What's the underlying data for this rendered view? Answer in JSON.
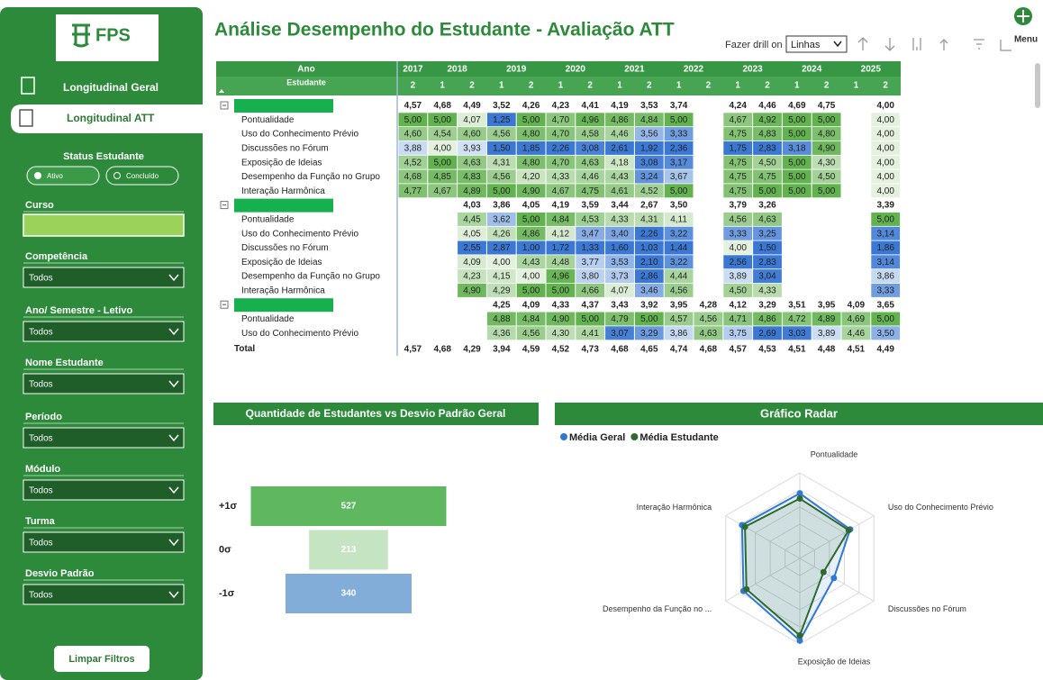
{
  "sidebar": {
    "logo": "FPS",
    "nav": [
      "Longitudinal Geral",
      "Longitudinal ATT"
    ],
    "status": {
      "title": "Status Estudante",
      "options": [
        "Ativo",
        "Concluído"
      ]
    },
    "filters": [
      {
        "label": "Curso"
      },
      {
        "label": "Competência",
        "value": "Todos"
      },
      {
        "label": "Ano/ Semestre - Letivo",
        "value": "Todos"
      },
      {
        "label": "Nome Estudante",
        "value": "Todos"
      },
      {
        "label": "Período",
        "value": "Todos"
      },
      {
        "label": "Módulo",
        "value": "Todos"
      },
      {
        "label": "Turma",
        "value": "Todos"
      },
      {
        "label": "Desvio Padrão",
        "value": "Todos"
      }
    ],
    "button": "Limpar Filtros"
  },
  "header": {
    "title": "Análise Desempenho do Estudante - Avaliação ATT",
    "drill_label": "Fazer drill on",
    "drill_value": "Linhas",
    "menu": "Menu"
  },
  "matrix": {
    "year_header": "Ano",
    "row_header": "Estudante",
    "years": [
      {
        "year": "2017",
        "semesters": [
          "2"
        ]
      },
      {
        "year": "2018",
        "semesters": [
          "1",
          "2"
        ]
      },
      {
        "year": "2019",
        "semesters": [
          "1",
          "2"
        ]
      },
      {
        "year": "2020",
        "semesters": [
          "1",
          "2"
        ]
      },
      {
        "year": "2021",
        "semesters": [
          "1",
          "2"
        ]
      },
      {
        "year": "2022",
        "semesters": [
          "1",
          "2"
        ]
      },
      {
        "year": "2023",
        "semesters": [
          "1",
          "2"
        ]
      },
      {
        "year": "2024",
        "semesters": [
          "1",
          "2"
        ]
      },
      {
        "year": "2025",
        "semesters": [
          "1",
          "2"
        ]
      }
    ],
    "groups": [
      {
        "total": [
          "4,57",
          "4,68",
          "4,49",
          "3,52",
          "4,26",
          "4,23",
          "4,41",
          "4,19",
          "3,53",
          "3,74",
          null,
          "4,24",
          "4,46",
          "4,69",
          "4,75",
          null,
          "4,00"
        ],
        "rows": [
          {
            "label": "Pontualidade",
            "cells": [
              "5,00",
              "5,00",
              "4,07",
              "1,25",
              "5,00",
              "4,70",
              "4,96",
              "4,86",
              "4,84",
              "5,00",
              null,
              "4,67",
              "4,92",
              "5,00",
              "5,00",
              null,
              "4,00"
            ]
          },
          {
            "label": "Uso do Conhecimento Prévio",
            "cells": [
              "4,60",
              "4,54",
              "4,60",
              "4,56",
              "4,80",
              "4,70",
              "4,58",
              "4,46",
              "3,56",
              "3,33",
              null,
              "4,75",
              "4,83",
              "5,00",
              "4,80",
              null,
              "4,00"
            ]
          },
          {
            "label": "Discussões no Fórum",
            "cells": [
              "3,88",
              "4,00",
              "3,93",
              "1,50",
              "1,85",
              "2,26",
              "3,08",
              "2,61",
              "1,92",
              "2,36",
              null,
              "1,75",
              "2,83",
              "3,18",
              "4,90",
              null,
              "4,00"
            ]
          },
          {
            "label": "Exposição de Ideias",
            "cells": [
              "4,52",
              "5,00",
              "4,63",
              "4,31",
              "4,80",
              "4,70",
              "4,63",
              "4,18",
              "3,08",
              "3,17",
              null,
              "4,75",
              "4,50",
              "5,00",
              "4,30",
              null,
              "4,00"
            ]
          },
          {
            "label": "Desempenho da Função no Grupo",
            "cells": [
              "4,68",
              "4,85",
              "4,83",
              "4,56",
              "4,20",
              "4,33",
              "4,46",
              "4,43",
              "3,24",
              "3,67",
              null,
              "4,75",
              "4,75",
              "5,00",
              "4,50",
              null,
              "4,00"
            ]
          },
          {
            "label": "Interação Harmônica",
            "cells": [
              "4,77",
              "4,67",
              "4,89",
              "5,00",
              "4,90",
              "4,67",
              "4,75",
              "4,61",
              "4,52",
              "5,00",
              null,
              "4,75",
              "5,00",
              "5,00",
              "5,00",
              null,
              "4,00"
            ]
          }
        ]
      },
      {
        "total": [
          null,
          null,
          "4,03",
          "3,86",
          "4,05",
          "4,19",
          "3,59",
          "3,44",
          "2,67",
          "3,50",
          null,
          "3,79",
          "3,26",
          null,
          null,
          null,
          "3,39"
        ],
        "rows": [
          {
            "label": "Pontualidade",
            "cells": [
              null,
              null,
              "4,45",
              "3,62",
              "5,00",
              "4,84",
              "4,53",
              "4,33",
              "4,31",
              "4,11",
              null,
              "4,56",
              "4,63",
              null,
              null,
              null,
              "5,00"
            ]
          },
          {
            "label": "Uso do Conhecimento Prévio",
            "cells": [
              null,
              null,
              "4,05",
              "4,26",
              "4,86",
              "4,12",
              "3,47",
              "3,40",
              "2,26",
              "3,22",
              null,
              "3,33",
              "3,25",
              null,
              null,
              null,
              "3,14"
            ]
          },
          {
            "label": "Discussões no Fórum",
            "cells": [
              null,
              null,
              "2,55",
              "2,87",
              "1,00",
              "1,72",
              "1,33",
              "1,60",
              "1,03",
              "1,44",
              null,
              "4,00",
              "1,50",
              null,
              null,
              null,
              "1,86"
            ]
          },
          {
            "label": "Exposição de Ideias",
            "cells": [
              null,
              null,
              "4,09",
              "4,00",
              "4,43",
              "4,48",
              "3,77",
              "3,53",
              "2,10",
              "3,22",
              null,
              "2,56",
              "2,83",
              null,
              null,
              null,
              "3,14"
            ]
          },
          {
            "label": "Desempenho da Função no Grupo",
            "cells": [
              null,
              null,
              "4,23",
              "4,15",
              "4,00",
              "4,96",
              "3,80",
              "3,73",
              "2,86",
              "4,44",
              null,
              "3,89",
              "3,04",
              null,
              null,
              null,
              "3,86"
            ]
          },
          {
            "label": "Interação Harmônica",
            "cells": [
              null,
              null,
              "4,90",
              "4,29",
              "5,00",
              "5,00",
              "4,66",
              "4,07",
              "3,46",
              "4,56",
              null,
              "4,50",
              "4,33",
              null,
              null,
              null,
              "3,33"
            ]
          }
        ]
      },
      {
        "total": [
          null,
          null,
          null,
          "4,25",
          "4,09",
          "4,33",
          "4,37",
          "3,43",
          "3,92",
          "3,95",
          "4,28",
          "4,12",
          "3,29",
          "3,51",
          "3,95",
          "4,09",
          "3,65"
        ],
        "rows": [
          {
            "label": "Pontualidade",
            "cells": [
              null,
              null,
              null,
              "4,88",
              "4,84",
              "4,90",
              "5,00",
              "4,79",
              "5,00",
              "4,57",
              "4,56",
              "4,71",
              "4,86",
              "4,72",
              "4,89",
              "4,69",
              "5,00"
            ]
          },
          {
            "label": "Uso do Conhecimento Prévio",
            "cells": [
              null,
              null,
              null,
              "4,36",
              "4,56",
              "4,30",
              "4,41",
              "3,07",
              "3,29",
              "3,86",
              "4,63",
              "3,75",
              "2,69",
              "3,03",
              "3,89",
              "4,46",
              "3,50"
            ]
          }
        ]
      }
    ],
    "total_label": "Total",
    "total": [
      "4,57",
      "4,68",
      "4,29",
      "3,94",
      "4,59",
      "4,52",
      "4,73",
      "4,68",
      "4,65",
      "4,74",
      "4,68",
      "4,57",
      "4,53",
      "4,51",
      "4,48",
      "4,51",
      "4,49"
    ]
  },
  "chart_data": [
    {
      "type": "funnel",
      "title": "Quantidade de Estudantes vs Desvio Padrão Geral",
      "categories": [
        "+1σ",
        "0σ",
        "-1σ"
      ],
      "values": [
        527,
        213,
        340
      ],
      "colors": [
        "#5fb760",
        "#c5e4c1",
        "#83add9"
      ]
    },
    {
      "type": "radar",
      "title": "Gráfico Radar",
      "axes": [
        "Pontualidade",
        "Uso do Conhecimento Prévio",
        "Discussões no Fórum",
        "Exposição de Ideias",
        "Desempenho da Função no ...",
        "Interação Harmônica"
      ],
      "series": [
        {
          "name": "Média Geral",
          "color": "#2f78d4",
          "values": [
            3.8,
            3.4,
            2.3,
            4.8,
            3.8,
            3.9
          ]
        },
        {
          "name": "Média Estudante",
          "color": "#2d6a2d",
          "values": [
            3.5,
            3.3,
            1.6,
            4.5,
            3.6,
            3.7
          ]
        }
      ],
      "rlim": [
        0,
        5
      ],
      "rticks": [
        1,
        2,
        3,
        4,
        5
      ],
      "grid": true
    }
  ]
}
